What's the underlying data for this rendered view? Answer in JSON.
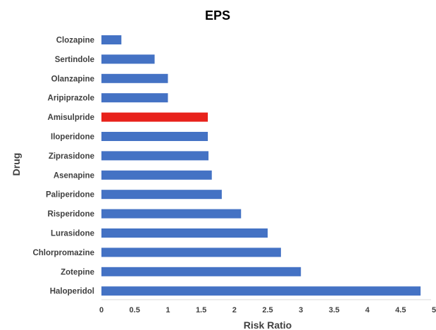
{
  "chart_data": {
    "type": "bar",
    "orientation": "horizontal",
    "title": "EPS",
    "xlabel": "Risk Ratio",
    "ylabel": "Drug",
    "xlim": [
      0,
      5
    ],
    "x_ticks": [
      "0",
      "0.5",
      "1",
      "1.5",
      "2",
      "2.5",
      "3",
      "3.5",
      "4",
      "4.5",
      "5"
    ],
    "grid": false,
    "legend": "none",
    "colors": {
      "default": "#4472C4",
      "highlight": "#E8221B"
    },
    "highlight_category": "Amisulpride",
    "categories": [
      "Clozapine",
      "Sertindole",
      "Olanzapine",
      "Aripiprazole",
      "Amisulpride",
      "Iloperidone",
      "Ziprasidone",
      "Asenapine",
      "Paliperidone",
      "Risperidone",
      "Lurasidone",
      "Chlorpromazine",
      "Zotepine",
      "Haloperidol"
    ],
    "values": [
      0.3,
      0.8,
      1.0,
      1.0,
      1.6,
      1.6,
      1.61,
      1.66,
      1.81,
      2.1,
      2.5,
      2.7,
      3.0,
      4.8
    ]
  }
}
